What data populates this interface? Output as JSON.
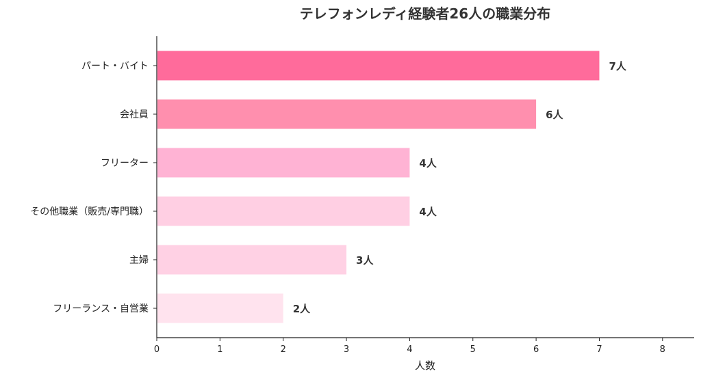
{
  "chart_data": {
    "type": "bar",
    "orientation": "horizontal",
    "title": "テレフォンレディ経験者26人の職業分布",
    "xlabel": "人数",
    "ylabel": "",
    "xlim": [
      0,
      8.5
    ],
    "xticks": [
      "0",
      "1",
      "2",
      "3",
      "4",
      "5",
      "6",
      "7",
      "8"
    ],
    "grid": false,
    "categories": [
      "パート・バイト",
      "会社員",
      "フリーター",
      "その他職業（販売/専門職）",
      "主婦",
      "フリーランス・自営業"
    ],
    "values": [
      7,
      6,
      4,
      4,
      3,
      2
    ],
    "value_labels": [
      "7人",
      "6人",
      "4人",
      "4人",
      "3人",
      "2人"
    ],
    "colors": [
      "#ff6b9b",
      "#ff8fae",
      "#ffb3d4",
      "#ffcfe3",
      "#ffd1e4",
      "#ffe3ee"
    ]
  }
}
